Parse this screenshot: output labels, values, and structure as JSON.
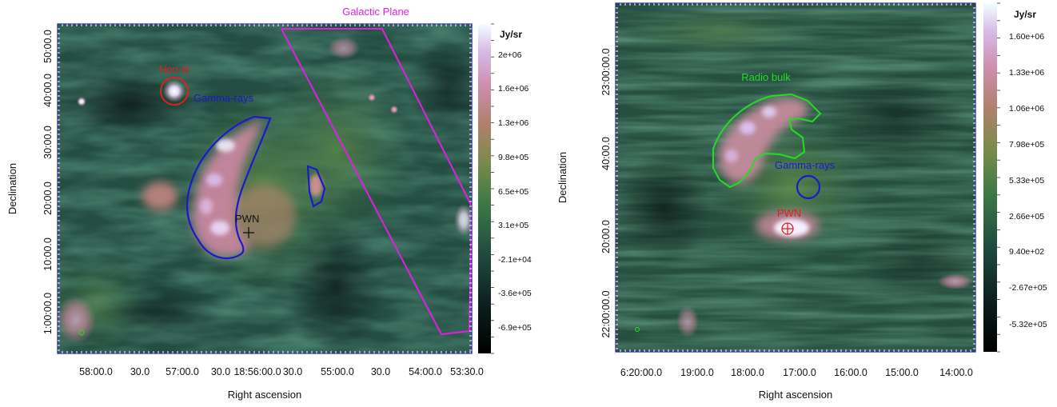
{
  "panels": [
    {
      "id": "left",
      "title": "Galactic Plane",
      "xlabel": "Right ascension",
      "ylabel": "Declination",
      "x_ticks": [
        "58:00.0",
        "30.0",
        "57:00.0",
        "30.0",
        "18:56:00.0",
        "30.0",
        "55:00.0",
        "30.0",
        "54:00.0",
        "53:30.0"
      ],
      "y_ticks": [
        "50:00.0",
        "40:00.0",
        "30:00.0",
        "20:00.0",
        "10:00.0",
        "1:00:00.0"
      ],
      "colorbar": {
        "unit": "Jy/sr",
        "ticks": [
          "2e+06",
          "1.6e+06",
          "1.3e+06",
          "9.8e+05",
          "6.5e+05",
          "3.1e+05",
          "-2.1e+04",
          "-3.6e+05",
          "-6.9e+05"
        ]
      },
      "annotations": {
        "non_id": "Non-id",
        "gamma": "Gamma-rays",
        "pwn": "PWN"
      }
    },
    {
      "id": "right",
      "xlabel": "Right ascension",
      "ylabel": "Declination",
      "x_ticks": [
        "6:20:00.0",
        "19:00.0",
        "18:00.0",
        "17:00.0",
        "16:00.0",
        "15:00.0",
        "14:00.0"
      ],
      "y_ticks": [
        "23:00:00.0",
        "40:00.0",
        "20:00.0",
        "22:00:00.0"
      ],
      "colorbar": {
        "unit": "Jy/sr",
        "ticks": [
          "1.60e+06",
          "1.33e+06",
          "1.06e+06",
          "7.98e+05",
          "5.33e+05",
          "2.66e+05",
          "9.40e+02",
          "-2.67e+05",
          "-5.32e+05"
        ]
      },
      "annotations": {
        "radio_bulk": "Radio bulk",
        "gamma": "Gamma-rays",
        "pwn": "PWN"
      }
    }
  ],
  "colors": {
    "galactic_plane": "#e020e0",
    "gamma_left": "#1a1acc",
    "gamma_right": "#1a1acc",
    "non_id": "#e02020",
    "pwn_right": "#e02020",
    "radio_bulk": "#22dd22",
    "frame": "#2a2ab0"
  },
  "chart_data": [
    {
      "type": "heatmap",
      "title": "Galactic Plane",
      "xlabel": "Right ascension",
      "ylabel": "Declination",
      "colorbar_unit": "Jy/sr",
      "colorbar_range": [
        -690000.0,
        2000000.0
      ],
      "regions": [
        "Non-id",
        "Gamma-rays",
        "PWN",
        "Galactic Plane"
      ]
    },
    {
      "type": "heatmap",
      "xlabel": "Right ascension",
      "ylabel": "Declination",
      "colorbar_unit": "Jy/sr",
      "colorbar_range": [
        -532000.0,
        1600000.0
      ],
      "regions": [
        "Radio bulk",
        "Gamma-rays",
        "PWN"
      ]
    }
  ]
}
